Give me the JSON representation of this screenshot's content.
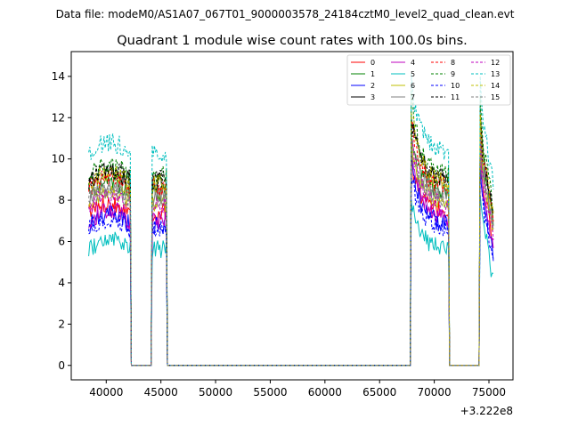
{
  "header": {
    "file_label": "Data file: modeM0/AS1A07_067T01_9000003578_24184cztM0_level2_quad_clean.evt"
  },
  "chart_data": {
    "type": "line",
    "title": "Quadrant 1 module wise count rates with 100.0s bins.",
    "xlabel": "",
    "ylabel": "",
    "x_offset_label": "+3.222e8",
    "xlim": [
      36800,
      77200
    ],
    "ylim": [
      -0.7,
      15.2
    ],
    "x_ticks": [
      40000,
      45000,
      50000,
      55000,
      60000,
      65000,
      70000,
      75000
    ],
    "y_ticks": [
      0,
      2,
      4,
      6,
      8,
      10,
      12,
      14
    ],
    "legend_position": "top-right",
    "segments": [
      {
        "start": 38400,
        "end": 42200
      },
      {
        "start": 44200,
        "end": 45500
      },
      {
        "start": 67900,
        "end": 71300
      },
      {
        "start": 74200,
        "end": 75400
      }
    ],
    "series": [
      {
        "name": "0",
        "color": "#ff0000",
        "dash": "solid",
        "level": 7.4
      },
      {
        "name": "1",
        "color": "#008000",
        "dash": "solid",
        "level": 8.4
      },
      {
        "name": "2",
        "color": "#0000ff",
        "dash": "solid",
        "level": 6.8
      },
      {
        "name": "3",
        "color": "#000000",
        "dash": "solid",
        "level": 8.9
      },
      {
        "name": "4",
        "color": "#bf00bf",
        "dash": "solid",
        "level": 7.0
      },
      {
        "name": "5",
        "color": "#00bfbf",
        "dash": "solid",
        "level": 5.6
      },
      {
        "name": "6",
        "color": "#bfbf00",
        "dash": "solid",
        "level": 7.9
      },
      {
        "name": "7",
        "color": "#808080",
        "dash": "solid",
        "level": 8.2
      },
      {
        "name": "8",
        "color": "#ff0000",
        "dash": "dashed",
        "level": 8.6
      },
      {
        "name": "9",
        "color": "#008000",
        "dash": "dashed",
        "level": 9.2
      },
      {
        "name": "10",
        "color": "#0000ff",
        "dash": "dashed",
        "level": 6.6
      },
      {
        "name": "11",
        "color": "#000000",
        "dash": "dashed",
        "level": 9.0
      },
      {
        "name": "12",
        "color": "#bf00bf",
        "dash": "dashed",
        "level": 7.7
      },
      {
        "name": "13",
        "color": "#00bfbf",
        "dash": "dashed",
        "level": 10.3
      },
      {
        "name": "14",
        "color": "#bfbf00",
        "dash": "dashed",
        "level": 8.8
      },
      {
        "name": "15",
        "color": "#808080",
        "dash": "dashed",
        "level": 8.0
      }
    ]
  }
}
